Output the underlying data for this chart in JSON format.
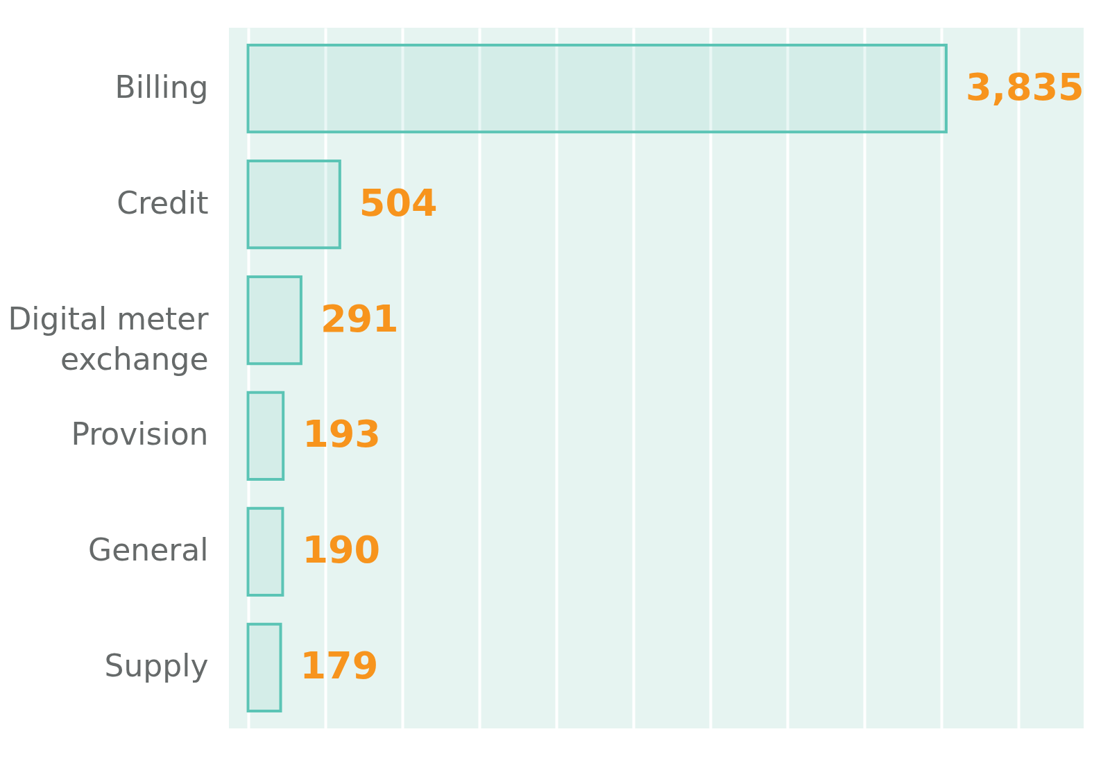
{
  "chart_data": {
    "type": "bar",
    "orientation": "horizontal",
    "categories": [
      "Billing",
      "Credit",
      "Digital meter exchange",
      "Provision",
      "General",
      "Supply"
    ],
    "values": [
      3835,
      504,
      291,
      193,
      190,
      179
    ],
    "color": "#5bc4b5",
    "value_labels": [
      "3,835",
      "504",
      "291",
      "193",
      "190",
      "179"
    ],
    "xlim": [
      -105,
      4590
    ],
    "xticks": [
      {
        "value": 0,
        "label": null
      },
      {
        "value": 423,
        "label": null
      },
      {
        "value": 846,
        "label": null
      },
      {
        "value": 1269,
        "label": null
      },
      {
        "value": 1692,
        "label": null
      },
      {
        "value": 2115,
        "label": null
      },
      {
        "value": 2538,
        "label": null
      },
      {
        "value": 2961,
        "label": null
      },
      {
        "value": 3384,
        "label": null
      },
      {
        "value": 3807,
        "label": null
      },
      {
        "value": 4230,
        "label": null
      }
    ],
    "grid": "x",
    "tick_labels": "y"
  }
}
